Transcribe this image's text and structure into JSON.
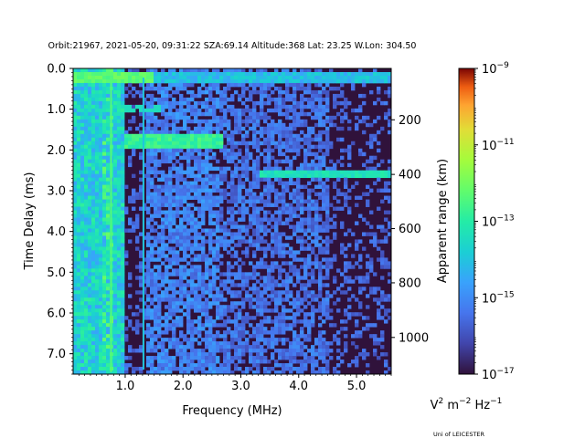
{
  "chart_data": {
    "type": "heatmap",
    "title": "Orbit:21967, 2021-05-20, 09:31:22 SZA:69.14 Altitude:368 Lat: 23.25 W.Lon: 304.50",
    "xlabel": "Frequency (MHz)",
    "ylabel": "Time Delay (ms)",
    "ylabel_right": "Apparent range (km)",
    "xlim": [
      0.1,
      5.6
    ],
    "ylim": [
      7.5,
      0.0
    ],
    "x_ticks": [
      "1.0",
      "2.0",
      "3.0",
      "4.0",
      "5.0"
    ],
    "x_tick_values": [
      1.0,
      2.0,
      3.0,
      4.0,
      5.0
    ],
    "y_ticks": [
      "0.0",
      "1.0",
      "2.0",
      "3.0",
      "4.0",
      "5.0",
      "6.0",
      "7.0"
    ],
    "y_tick_values": [
      0,
      1,
      2,
      3,
      4,
      5,
      6,
      7
    ],
    "right_ticks": [
      "200",
      "400",
      "600",
      "800",
      "1000"
    ],
    "right_tick_delays_ms": [
      1.26,
      2.6,
      3.93,
      5.26,
      6.6
    ],
    "colorbar": {
      "scale": "log",
      "min": "1e-17",
      "max": "1e-9",
      "tick_labels": [
        {
          "base": "10",
          "exp": "−9"
        },
        {
          "base": "10",
          "exp": "−11"
        },
        {
          "base": "10",
          "exp": "−13"
        },
        {
          "base": "10",
          "exp": "−15"
        },
        {
          "base": "10",
          "exp": "−17"
        }
      ],
      "tick_exponents": [
        -9,
        -11,
        -13,
        -15,
        -17
      ],
      "unit_parts": [
        "V",
        "2",
        " m",
        "−2",
        " Hz",
        "−1"
      ]
    },
    "features": [
      {
        "description": "strong echo band near 0.2–0.3 ms delay across all frequencies"
      },
      {
        "description": "trace near 1.7–2.0 ms from 1.0 to 2.7 MHz"
      },
      {
        "description": "trace near 2.6 ms from 3.3 to 5.6 MHz"
      }
    ]
  },
  "footer": {
    "credit": "Uni of LEICESTER"
  },
  "colors": {
    "background_low": "#30123b",
    "palette": "turbo"
  }
}
